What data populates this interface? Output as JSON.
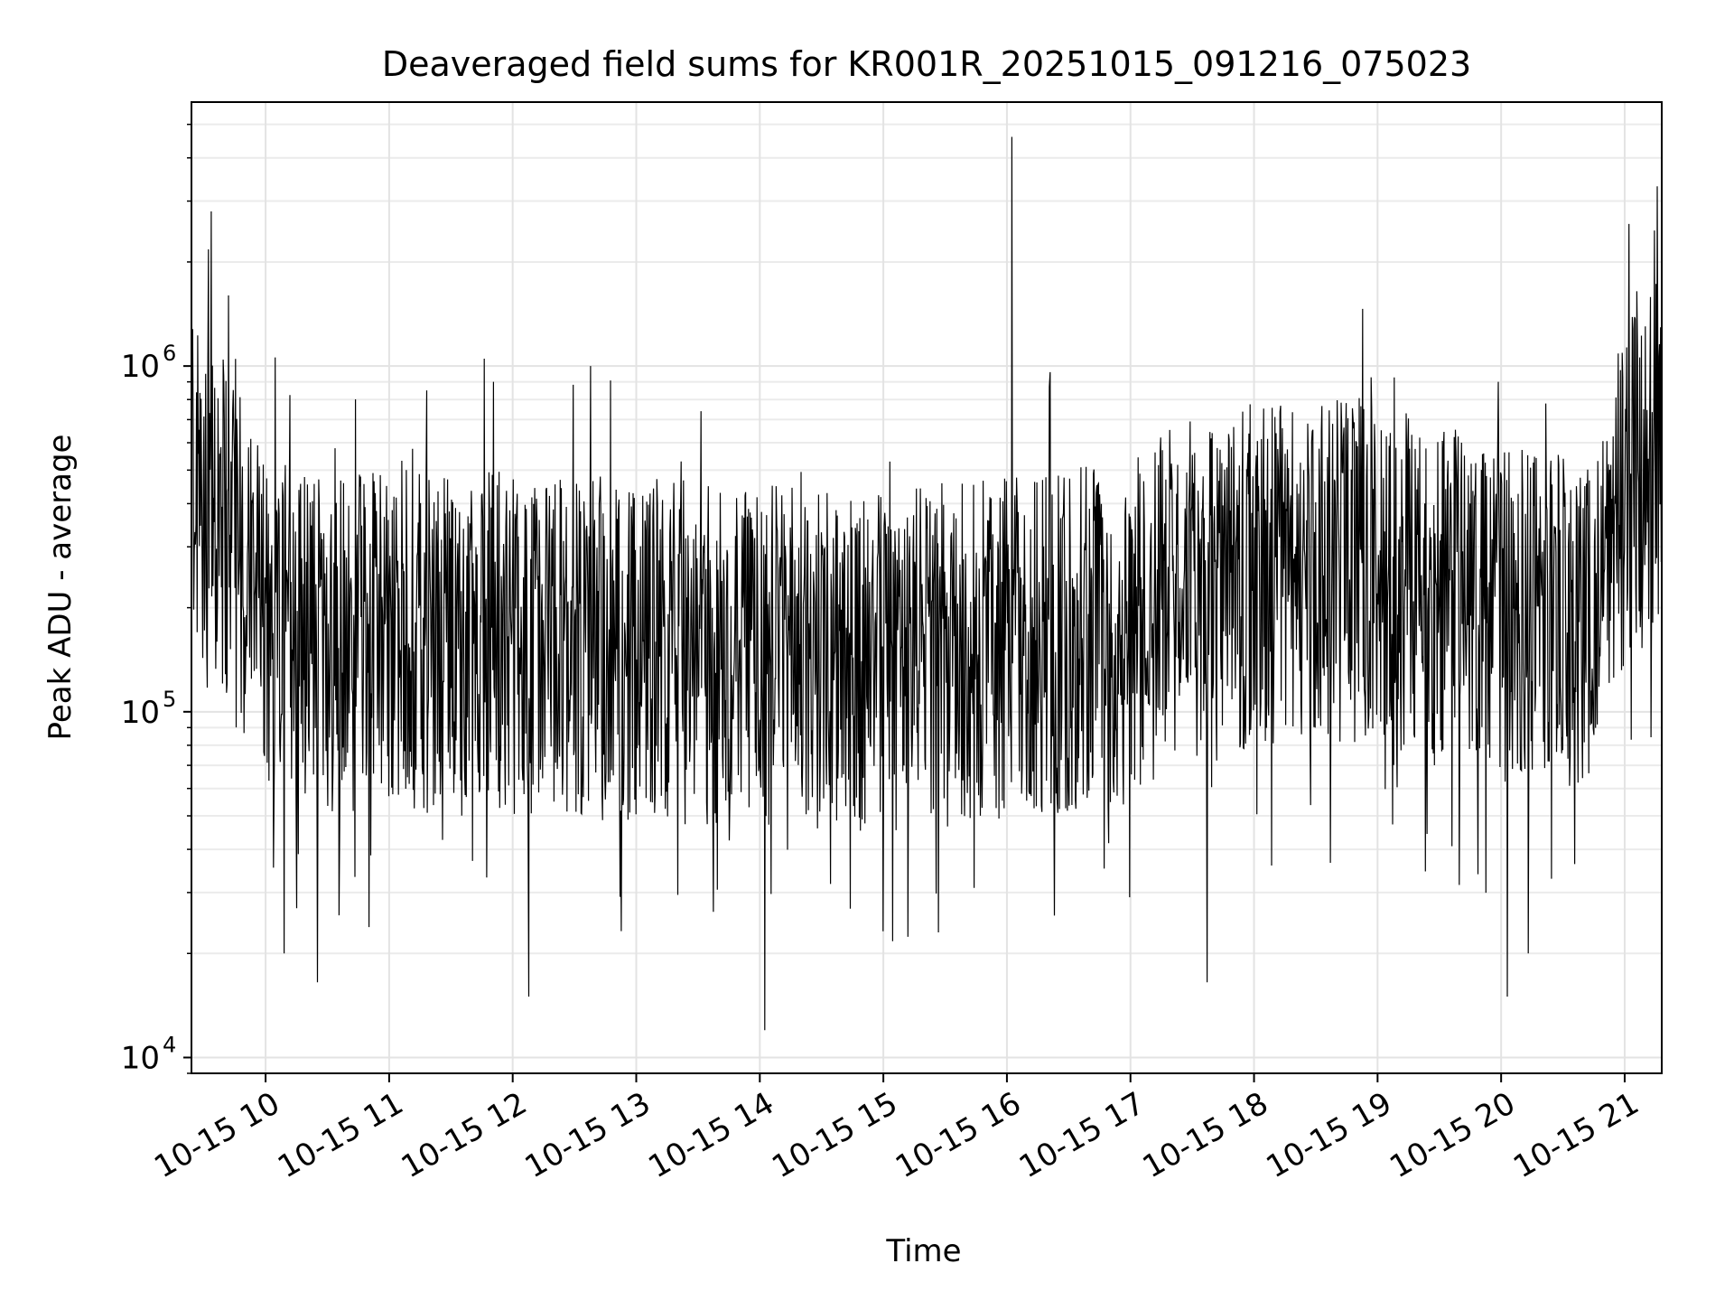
{
  "chart_data": {
    "type": "line",
    "title": "Deaveraged field sums for KR001R_20251015_091216_075023",
    "xlabel": "Time",
    "ylabel": "Peak ADU - average",
    "yscale": "log",
    "ylim": [
      9000,
      5800000
    ],
    "xlim_hours": [
      9.4,
      21.3
    ],
    "grid": true,
    "x_ticks": [
      {
        "hour": 10,
        "label": "10-15 10"
      },
      {
        "hour": 11,
        "label": "10-15 11"
      },
      {
        "hour": 12,
        "label": "10-15 12"
      },
      {
        "hour": 13,
        "label": "10-15 13"
      },
      {
        "hour": 14,
        "label": "10-15 14"
      },
      {
        "hour": 15,
        "label": "10-15 15"
      },
      {
        "hour": 16,
        "label": "10-15 16"
      },
      {
        "hour": 17,
        "label": "10-15 17"
      },
      {
        "hour": 18,
        "label": "10-15 18"
      },
      {
        "hour": 19,
        "label": "10-15 19"
      },
      {
        "hour": 20,
        "label": "10-15 20"
      },
      {
        "hour": 21,
        "label": "10-15 21"
      }
    ],
    "y_ticks": [
      {
        "value": 10000,
        "base": "10",
        "exp": "4"
      },
      {
        "value": 100000,
        "base": "10",
        "exp": "5"
      },
      {
        "value": 1000000,
        "base": "10",
        "exp": "6"
      }
    ],
    "series": [
      {
        "name": "deaveraged field sum",
        "color": "#000000",
        "trend_hours": [
          9.4,
          9.7,
          10.0,
          10.5,
          11.0,
          12.0,
          13.0,
          14.0,
          15.0,
          16.0,
          16.5,
          17.0,
          17.3,
          18.0,
          19.0,
          19.5,
          20.0,
          20.5,
          20.8,
          21.0,
          21.3
        ],
        "trend_values": [
          550000,
          350000,
          200000,
          170000,
          180000,
          175000,
          170000,
          160000,
          160000,
          170000,
          180000,
          190000,
          240000,
          270000,
          290000,
          240000,
          220000,
          210000,
          220000,
          500000,
          650000
        ],
        "spikes": [
          {
            "hour": 9.56,
            "value": 2800000
          },
          {
            "hour": 9.7,
            "value": 1600000
          },
          {
            "hour": 11.77,
            "value": 1050000
          },
          {
            "hour": 12.63,
            "value": 1000000
          },
          {
            "hour": 16.04,
            "value": 4600000
          },
          {
            "hour": 16.35,
            "value": 960000
          },
          {
            "hour": 21.3,
            "value": 2600000
          }
        ],
        "dips": [
          {
            "hour": 10.15,
            "value": 20000
          },
          {
            "hour": 10.42,
            "value": 16500
          },
          {
            "hour": 12.13,
            "value": 15000
          },
          {
            "hour": 14.04,
            "value": 12000
          },
          {
            "hour": 17.62,
            "value": 16500
          },
          {
            "hour": 20.05,
            "value": 15000
          },
          {
            "hour": 20.22,
            "value": 20000
          }
        ]
      }
    ]
  }
}
